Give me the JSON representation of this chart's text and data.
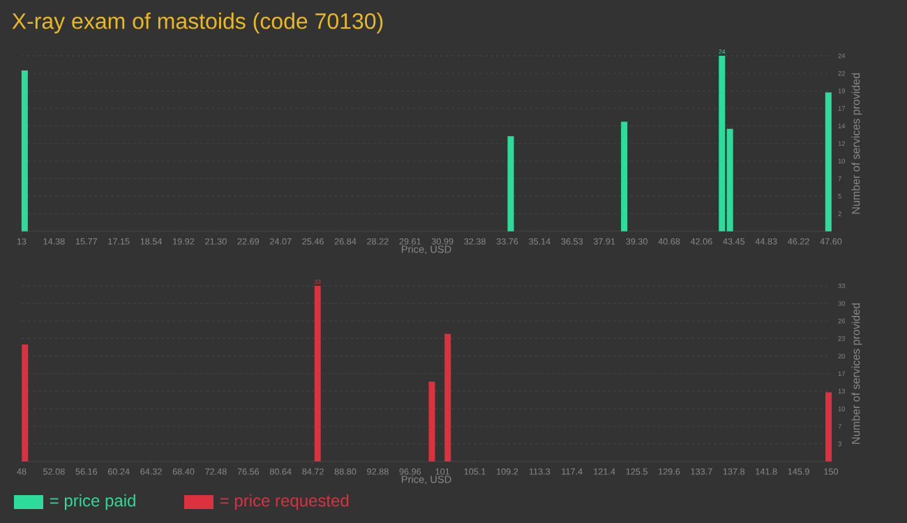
{
  "chart_data": [
    {
      "type": "bar",
      "title": "X-ray exam of mastoids (code 70130)",
      "xlabel": "Price, USD",
      "ylabel": "Number of services provided",
      "series": [
        {
          "name": "= price paid",
          "color": "#2ddc9a",
          "x": [
            13.13,
            33.91,
            38.76,
            42.94,
            43.28,
            47.49
          ],
          "values": [
            22,
            13,
            15,
            24,
            14,
            19
          ],
          "value_labels": [
            null,
            null,
            null,
            "24",
            null,
            null
          ]
        }
      ],
      "xlim": [
        13,
        47.6
      ],
      "ylim": [
        0,
        24
      ],
      "xticks": [
        {
          "value": 13,
          "label": "13"
        },
        {
          "value": 14.384,
          "label": "14.38"
        },
        {
          "value": 15.768,
          "label": "15.77"
        },
        {
          "value": 17.152,
          "label": "17.15"
        },
        {
          "value": 18.536,
          "label": "18.54"
        },
        {
          "value": 19.92,
          "label": "19.92"
        },
        {
          "value": 21.304,
          "label": "21.30"
        },
        {
          "value": 22.688,
          "label": "22.69"
        },
        {
          "value": 24.072,
          "label": "24.07"
        },
        {
          "value": 25.456,
          "label": "25.46"
        },
        {
          "value": 26.84,
          "label": "26.84"
        },
        {
          "value": 28.224,
          "label": "28.22"
        },
        {
          "value": 29.608,
          "label": "29.61"
        },
        {
          "value": 30.992,
          "label": "30.99"
        },
        {
          "value": 32.376,
          "label": "32.38"
        },
        {
          "value": 33.76,
          "label": "33.76"
        },
        {
          "value": 35.144,
          "label": "35.14"
        },
        {
          "value": 36.528,
          "label": "36.53"
        },
        {
          "value": 37.912,
          "label": "37.91"
        },
        {
          "value": 39.296,
          "label": "39.30"
        },
        {
          "value": 40.68,
          "label": "40.68"
        },
        {
          "value": 42.064,
          "label": "42.06"
        },
        {
          "value": 43.448,
          "label": "43.45"
        },
        {
          "value": 44.832,
          "label": "44.83"
        },
        {
          "value": 46.216,
          "label": "46.22"
        },
        {
          "value": 47.6,
          "label": "47.60"
        }
      ],
      "yticks": [
        {
          "value": 2.4,
          "label": "2"
        },
        {
          "value": 4.8,
          "label": "5"
        },
        {
          "value": 7.2,
          "label": "7"
        },
        {
          "value": 9.6,
          "label": "10"
        },
        {
          "value": 12,
          "label": "12"
        },
        {
          "value": 14.4,
          "label": "14"
        },
        {
          "value": 16.8,
          "label": "17"
        },
        {
          "value": 19.2,
          "label": "19"
        },
        {
          "value": 21.6,
          "label": "22"
        },
        {
          "value": 24,
          "label": "24"
        }
      ],
      "grid": "y",
      "legend": "bottom"
    },
    {
      "type": "bar",
      "xlabel": "Price, USD",
      "ylabel": "Number of services provided",
      "series": [
        {
          "name": "= price requested",
          "color": "#dc3240",
          "x": [
            48.42,
            85.3,
            99.7,
            101.7,
            149.7
          ],
          "values": [
            22,
            33,
            15,
            24,
            13
          ],
          "value_labels": [
            null,
            "33",
            null,
            null,
            null
          ]
        }
      ],
      "xlim": [
        48,
        150
      ],
      "ylim": [
        0,
        33
      ],
      "xticks": [
        {
          "value": 48,
          "label": "48"
        },
        {
          "value": 52.08,
          "label": "52.08"
        },
        {
          "value": 56.16,
          "label": "56.16"
        },
        {
          "value": 60.24,
          "label": "60.24"
        },
        {
          "value": 64.32,
          "label": "64.32"
        },
        {
          "value": 68.4,
          "label": "68.40"
        },
        {
          "value": 72.48,
          "label": "72.48"
        },
        {
          "value": 76.56,
          "label": "76.56"
        },
        {
          "value": 80.64,
          "label": "80.64"
        },
        {
          "value": 84.72,
          "label": "84.72"
        },
        {
          "value": 88.8,
          "label": "88.80"
        },
        {
          "value": 92.88,
          "label": "92.88"
        },
        {
          "value": 96.96,
          "label": "96.96"
        },
        {
          "value": 101.04,
          "label": "101"
        },
        {
          "value": 105.12,
          "label": "105.1"
        },
        {
          "value": 109.2,
          "label": "109.2"
        },
        {
          "value": 113.28,
          "label": "113.3"
        },
        {
          "value": 117.36,
          "label": "117.4"
        },
        {
          "value": 121.44,
          "label": "121.4"
        },
        {
          "value": 125.52,
          "label": "125.5"
        },
        {
          "value": 129.6,
          "label": "129.6"
        },
        {
          "value": 133.68,
          "label": "133.7"
        },
        {
          "value": 137.76,
          "label": "137.8"
        },
        {
          "value": 141.84,
          "label": "141.8"
        },
        {
          "value": 145.92,
          "label": "145.9"
        },
        {
          "value": 150,
          "label": "150"
        }
      ],
      "yticks": [
        {
          "value": 3.3,
          "label": "3"
        },
        {
          "value": 6.6,
          "label": "7"
        },
        {
          "value": 9.9,
          "label": "10"
        },
        {
          "value": 13.2,
          "label": "13"
        },
        {
          "value": 16.5,
          "label": "17"
        },
        {
          "value": 19.8,
          "label": "20"
        },
        {
          "value": 23.1,
          "label": "23"
        },
        {
          "value": 26.4,
          "label": "26"
        },
        {
          "value": 29.7,
          "label": "30"
        },
        {
          "value": 33,
          "label": "33"
        }
      ],
      "grid": "y",
      "legend": "bottom"
    }
  ]
}
